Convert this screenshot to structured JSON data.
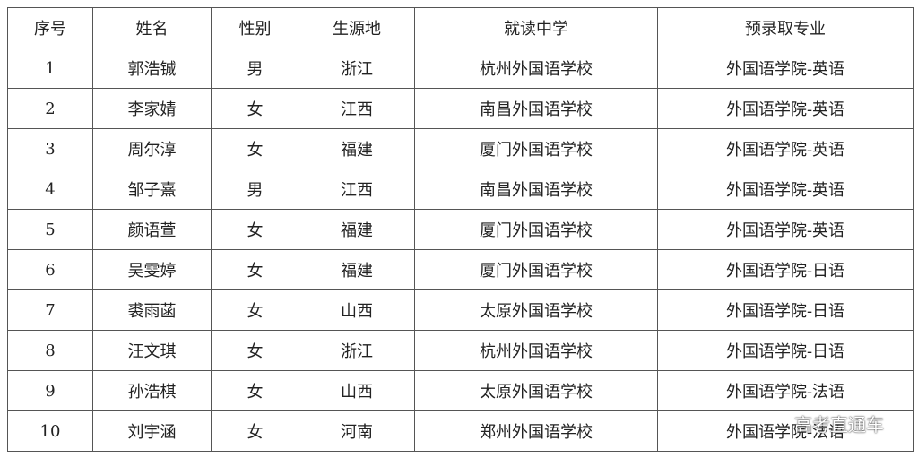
{
  "table": {
    "header": [
      "序号",
      "姓名",
      "性别",
      "生源地",
      "就读中学",
      "预录取专业"
    ],
    "rows": [
      [
        "1",
        "郭浩铖",
        "男",
        "浙江",
        "杭州外国语学校",
        "外国语学院-英语"
      ],
      [
        "2",
        "李家婧",
        "女",
        "江西",
        "南昌外国语学校",
        "外国语学院-英语"
      ],
      [
        "3",
        "周尔淳",
        "女",
        "福建",
        "厦门外国语学校",
        "外国语学院-英语"
      ],
      [
        "4",
        "邹子熹",
        "男",
        "江西",
        "南昌外国语学校",
        "外国语学院-英语"
      ],
      [
        "5",
        "颜语萱",
        "女",
        "福建",
        "厦门外国语学校",
        "外国语学院-英语"
      ],
      [
        "6",
        "吴雯婷",
        "女",
        "福建",
        "厦门外国语学校",
        "外国语学院-日语"
      ],
      [
        "7",
        "裘雨菡",
        "女",
        "山西",
        "太原外国语学校",
        "外国语学院-日语"
      ],
      [
        "8",
        "汪文琪",
        "女",
        "浙江",
        "杭州外国语学校",
        "外国语学院-日语"
      ],
      [
        "9",
        "孙浩棋",
        "女",
        "山西",
        "太原外国语学校",
        "外国语学院-法语"
      ],
      [
        "10",
        "刘宇涵",
        "女",
        "河南",
        "郑州外国语学校",
        "外国语学院-法语"
      ]
    ]
  },
  "watermark": "高考直通车"
}
